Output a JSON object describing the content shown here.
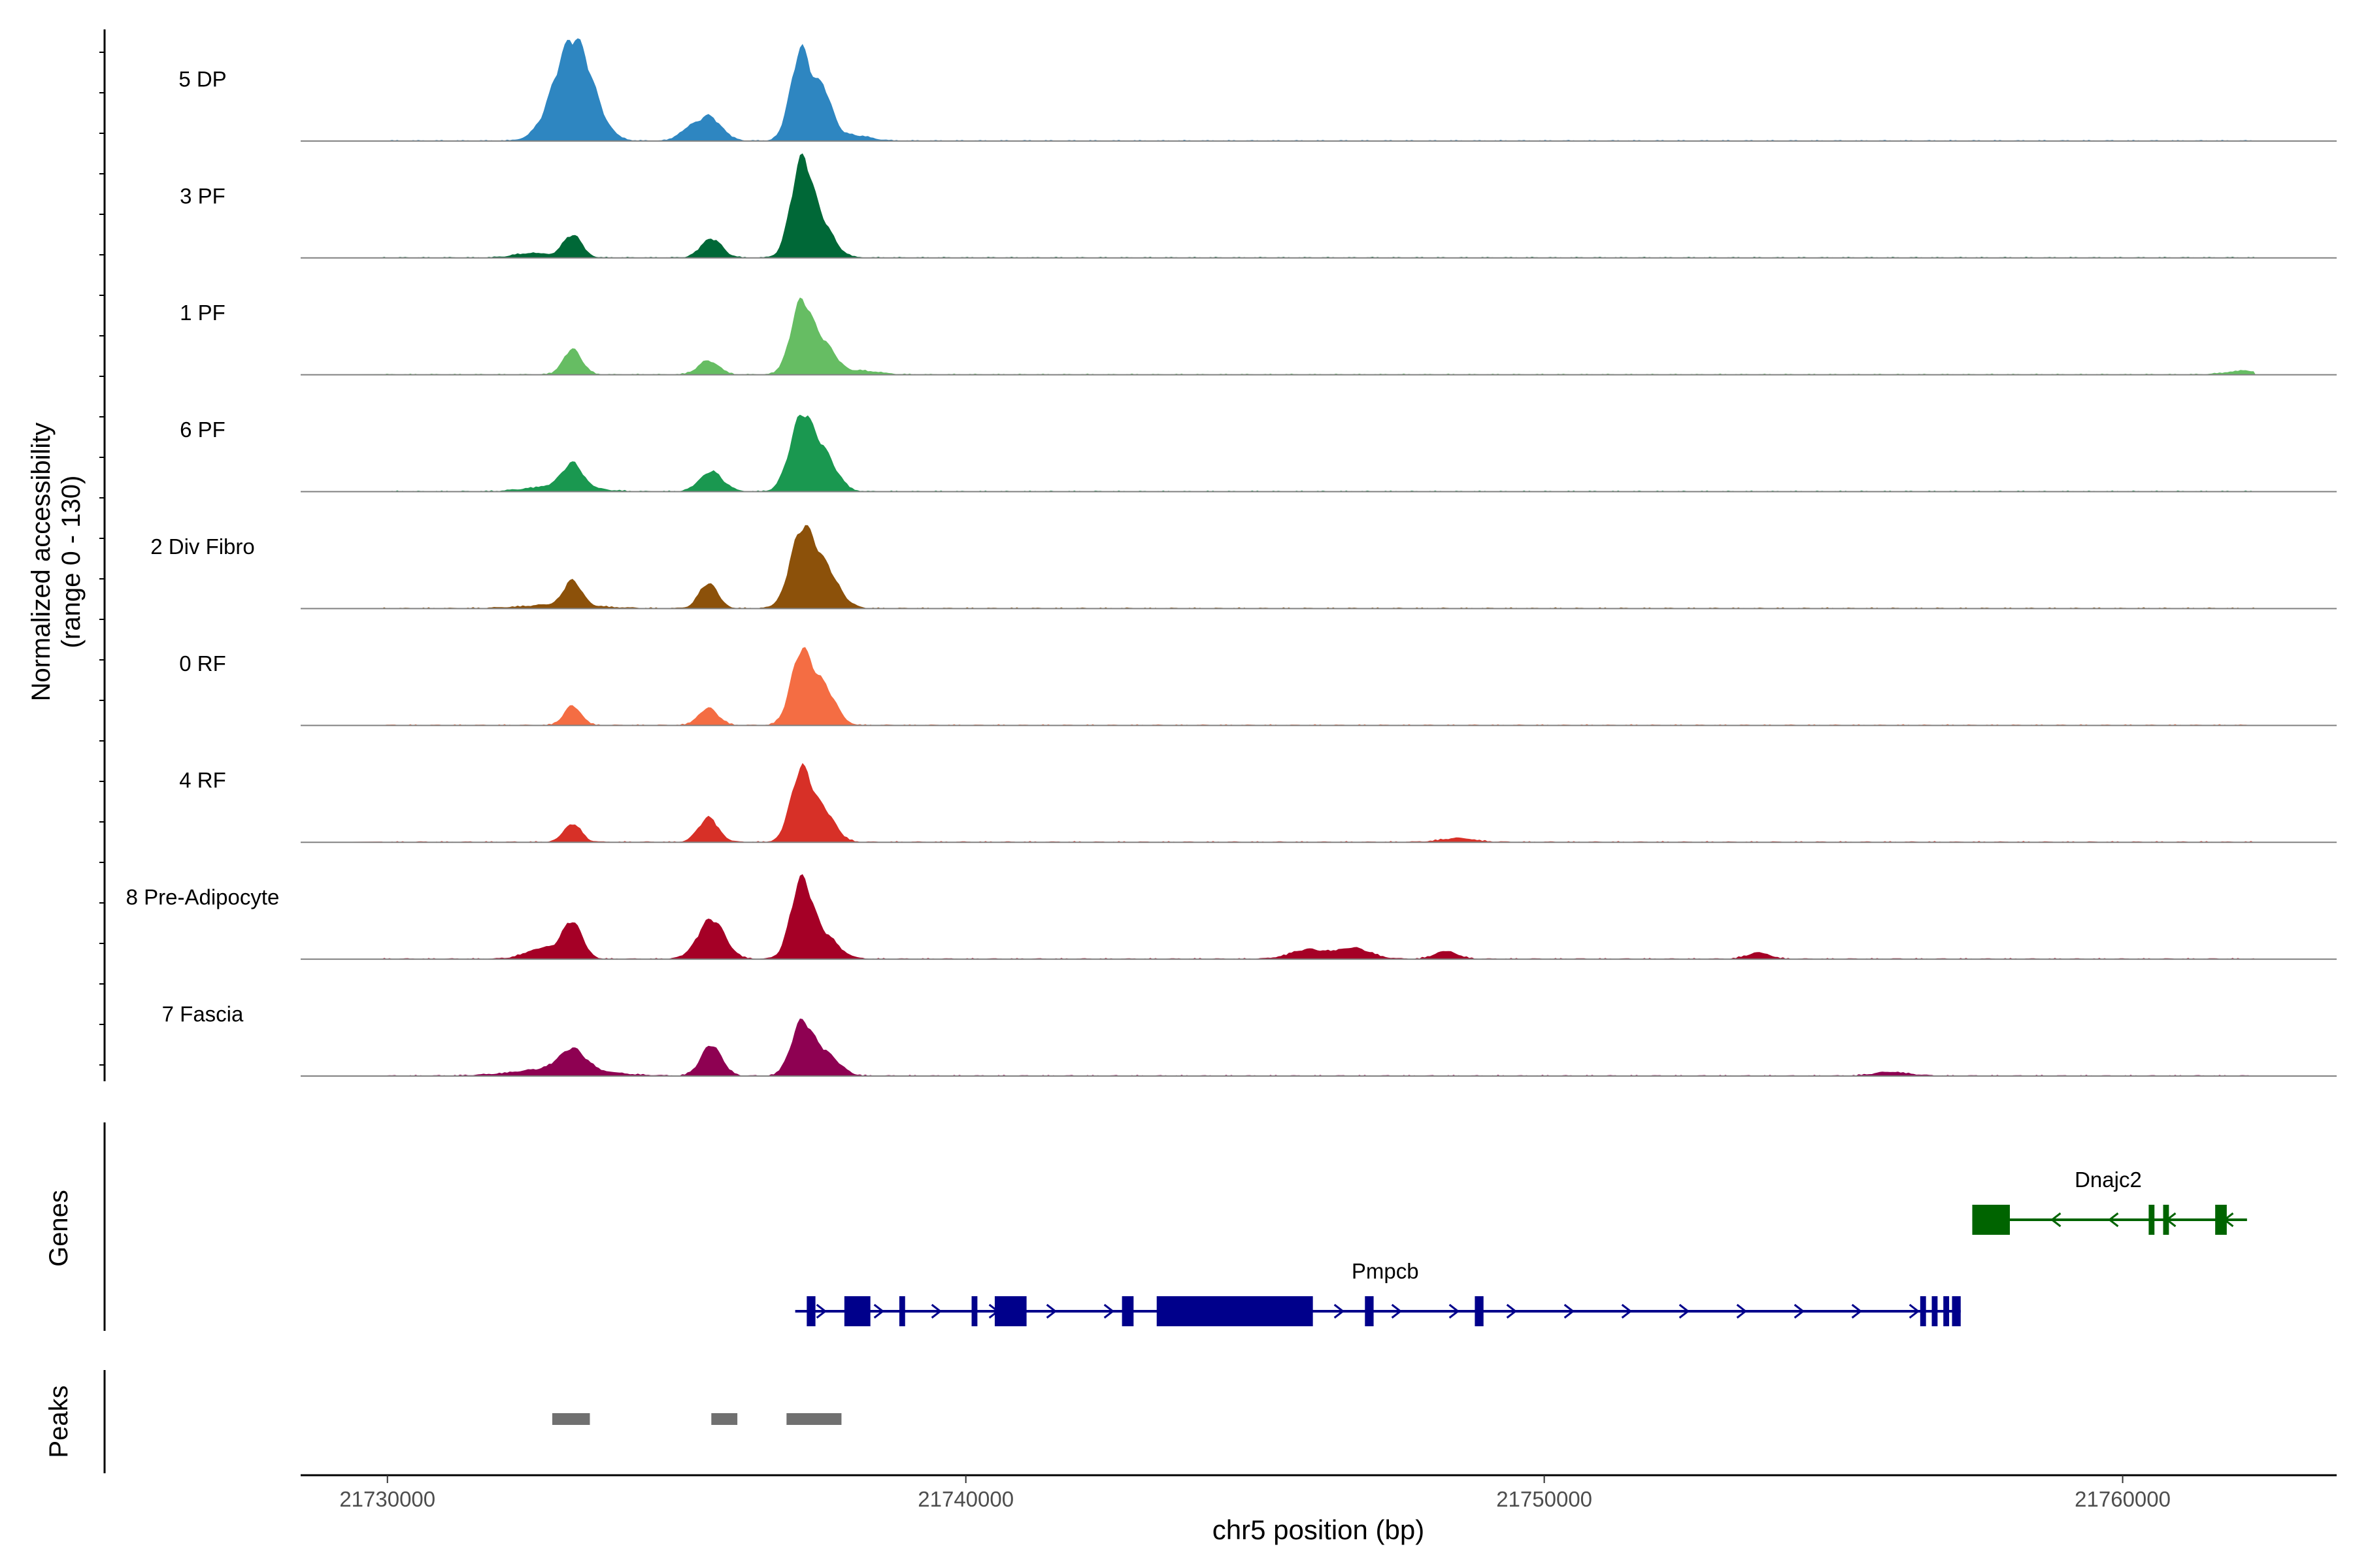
{
  "chart_data": {
    "type": "area",
    "title": "",
    "coverage": {
      "ylabel_line1": "Normalized accessibility",
      "ylabel_line2": "(range 0 - 130)",
      "ylim": [
        0,
        130
      ],
      "tracks": [
        {
          "name": "5 DP",
          "color": "#2E86C1",
          "peaks": [
            [
              21733150,
              95,
              320
            ],
            [
              21733350,
              45,
              300
            ],
            [
              21735550,
              32,
              220
            ],
            [
              21737150,
              118,
              180
            ],
            [
              21737550,
              58,
              150
            ],
            [
              21735150,
              10,
              150
            ],
            [
              21738000,
              8,
              300
            ]
          ]
        },
        {
          "name": "3 PF",
          "color": "#006837",
          "peaks": [
            [
              21733200,
              30,
              160
            ],
            [
              21735600,
              25,
              180
            ],
            [
              21737150,
              118,
              180
            ],
            [
              21737500,
              42,
              220
            ],
            [
              21732500,
              6,
              300
            ]
          ]
        },
        {
          "name": "1 PF",
          "color": "#66BD63",
          "peaks": [
            [
              21733200,
              33,
              160
            ],
            [
              21735550,
              18,
              180
            ],
            [
              21737150,
              92,
              180
            ],
            [
              21737550,
              38,
              200
            ],
            [
              21738200,
              5,
              300
            ],
            [
              21762100,
              5,
              300
            ]
          ]
        },
        {
          "name": "6 PF",
          "color": "#1A9850",
          "peaks": [
            [
              21733200,
              30,
              170
            ],
            [
              21735600,
              26,
              200
            ],
            [
              21737150,
              92,
              200
            ],
            [
              21737550,
              45,
              220
            ],
            [
              21733000,
              8,
              500
            ]
          ]
        },
        {
          "name": "2 Div Fibro",
          "color": "#8C510A",
          "peaks": [
            [
              21733200,
              32,
              150
            ],
            [
              21735550,
              33,
              160
            ],
            [
              21737150,
              92,
              200
            ],
            [
              21737550,
              52,
              240
            ],
            [
              21733000,
              5,
              600
            ]
          ]
        },
        {
          "name": "0 RF",
          "color": "#F46D43",
          "peaks": [
            [
              21733200,
              25,
              150
            ],
            [
              21735550,
              22,
              170
            ],
            [
              21737150,
              92,
              180
            ],
            [
              21737550,
              48,
              200
            ]
          ]
        },
        {
          "name": "4 RF",
          "color": "#D73027",
          "peaks": [
            [
              21733200,
              24,
              150
            ],
            [
              21735550,
              32,
              170
            ],
            [
              21737150,
              92,
              180
            ],
            [
              21737550,
              38,
              200
            ],
            [
              21748500,
              5,
              300
            ]
          ]
        },
        {
          "name": "8 Pre-Adipocyte",
          "color": "#A50026",
          "peaks": [
            [
              21733200,
              46,
              170
            ],
            [
              21735600,
              52,
              230
            ],
            [
              21737150,
              98,
              180
            ],
            [
              21737550,
              30,
              240
            ],
            [
              21732700,
              14,
              300
            ],
            [
              21745900,
              12,
              300
            ],
            [
              21746700,
              14,
              300
            ],
            [
              21748300,
              10,
              200
            ],
            [
              21753700,
              8,
              200
            ]
          ]
        },
        {
          "name": "7 Fascia",
          "color": "#8E0152",
          "peaks": [
            [
              21733200,
              26,
              220
            ],
            [
              21735600,
              40,
              180
            ],
            [
              21737150,
              64,
              180
            ],
            [
              21737550,
              30,
              240
            ],
            [
              21733000,
              10,
              700
            ],
            [
              21756000,
              5,
              300
            ]
          ]
        }
      ]
    },
    "genes": {
      "label": "Genes",
      "items": [
        {
          "name": "Dnajc2",
          "color": "#006400",
          "strand": "-",
          "start": 21757400,
          "end": 21762150,
          "exons": [
            [
              21757400,
              21758050
            ],
            [
              21760450,
              21760550
            ],
            [
              21760700,
              21760800
            ],
            [
              21761600,
              21761800
            ]
          ]
        },
        {
          "name": "Pmpcb",
          "color": "#00008B",
          "strand": "+",
          "start": 21737050,
          "end": 21757200,
          "exons": [
            [
              21737250,
              21737400
            ],
            [
              21737900,
              21738350
            ],
            [
              21738850,
              21738950
            ],
            [
              21740100,
              21740200
            ],
            [
              21740500,
              21741050
            ],
            [
              21742700,
              21742900
            ],
            [
              21743300,
              21746000
            ],
            [
              21746900,
              21747050
            ],
            [
              21748800,
              21748950
            ],
            [
              21756500,
              21756600
            ],
            [
              21756700,
              21756800
            ],
            [
              21756900,
              21757000
            ],
            [
              21757050,
              21757200
            ]
          ]
        }
      ]
    },
    "peaks": {
      "label": "Peaks",
      "color": "#707070",
      "regions": [
        [
          21732850,
          21733500
        ],
        [
          21735600,
          21736050
        ],
        [
          21736900,
          21737850
        ]
      ]
    },
    "x_axis": {
      "label": "chr5 position (bp)",
      "xlim": [
        21728500,
        21763700
      ],
      "ticks": [
        21730000,
        21740000,
        21750000,
        21760000
      ],
      "tick_labels": [
        "21730000",
        "21740000",
        "21750000",
        "21760000"
      ]
    }
  }
}
